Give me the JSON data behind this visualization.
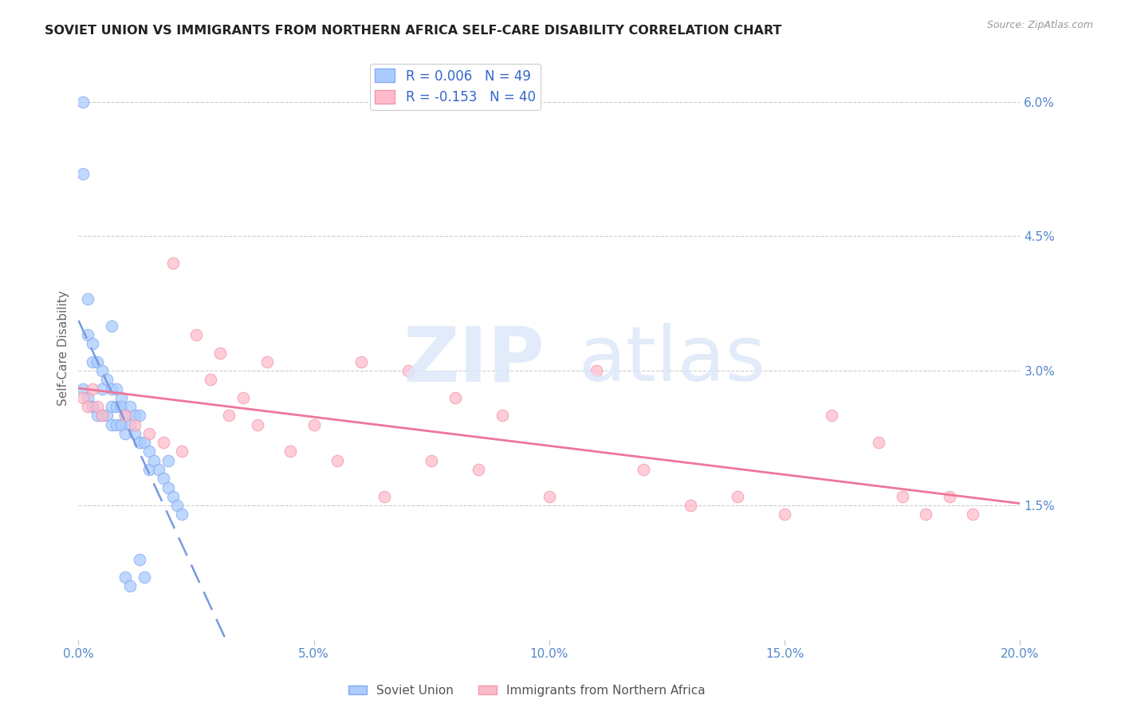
{
  "title": "SOVIET UNION VS IMMIGRANTS FROM NORTHERN AFRICA SELF-CARE DISABILITY CORRELATION CHART",
  "source": "Source: ZipAtlas.com",
  "xlabel_ticks": [
    "0.0%",
    "5.0%",
    "10.0%",
    "15.0%",
    "20.0%"
  ],
  "xlabel_tick_vals": [
    0.0,
    0.05,
    0.1,
    0.15,
    0.2
  ],
  "ylabel": "Self-Care Disability",
  "right_ytick_vals": [
    0.0,
    0.015,
    0.03,
    0.045,
    0.06
  ],
  "right_ytick_labels": [
    "",
    "1.5%",
    "3.0%",
    "4.5%",
    "6.0%"
  ],
  "xmin": 0.0,
  "xmax": 0.2,
  "ymin": 0.0,
  "ymax": 0.065,
  "soviet_color": "#aaccff",
  "soviet_edge_color": "#88aaee",
  "northern_africa_color": "#ffbbcc",
  "northern_africa_edge_color": "#ee99aa",
  "soviet_trend_color": "#7799dd",
  "northern_africa_trend_color": "#ee7799",
  "watermark_zip_color": "#dde8f8",
  "watermark_atlas_color": "#dde8f8",
  "soviet_x": [
    0.001,
    0.001,
    0.001,
    0.002,
    0.002,
    0.002,
    0.003,
    0.003,
    0.003,
    0.004,
    0.004,
    0.005,
    0.005,
    0.005,
    0.006,
    0.006,
    0.007,
    0.007,
    0.007,
    0.007,
    0.008,
    0.008,
    0.008,
    0.009,
    0.009,
    0.009,
    0.01,
    0.01,
    0.011,
    0.011,
    0.012,
    0.012,
    0.013,
    0.013,
    0.014,
    0.015,
    0.015,
    0.016,
    0.017,
    0.018,
    0.019,
    0.019,
    0.02,
    0.021,
    0.022,
    0.013,
    0.014,
    0.01,
    0.011
  ],
  "soviet_y": [
    0.06,
    0.052,
    0.028,
    0.038,
    0.034,
    0.027,
    0.033,
    0.031,
    0.026,
    0.031,
    0.025,
    0.03,
    0.028,
    0.025,
    0.029,
    0.025,
    0.035,
    0.028,
    0.026,
    0.024,
    0.028,
    0.026,
    0.024,
    0.027,
    0.026,
    0.024,
    0.025,
    0.023,
    0.026,
    0.024,
    0.025,
    0.023,
    0.025,
    0.022,
    0.022,
    0.021,
    0.019,
    0.02,
    0.019,
    0.018,
    0.02,
    0.017,
    0.016,
    0.015,
    0.014,
    0.009,
    0.007,
    0.007,
    0.006
  ],
  "northern_africa_x": [
    0.001,
    0.002,
    0.003,
    0.004,
    0.005,
    0.01,
    0.012,
    0.015,
    0.018,
    0.02,
    0.022,
    0.025,
    0.028,
    0.03,
    0.032,
    0.035,
    0.038,
    0.04,
    0.045,
    0.05,
    0.055,
    0.06,
    0.065,
    0.07,
    0.075,
    0.08,
    0.085,
    0.09,
    0.1,
    0.11,
    0.12,
    0.13,
    0.14,
    0.15,
    0.16,
    0.17,
    0.175,
    0.18,
    0.185,
    0.19
  ],
  "northern_africa_y": [
    0.027,
    0.026,
    0.028,
    0.026,
    0.025,
    0.025,
    0.024,
    0.023,
    0.022,
    0.042,
    0.021,
    0.034,
    0.029,
    0.032,
    0.025,
    0.027,
    0.024,
    0.031,
    0.021,
    0.024,
    0.02,
    0.031,
    0.016,
    0.03,
    0.02,
    0.027,
    0.019,
    0.025,
    0.016,
    0.03,
    0.019,
    0.015,
    0.016,
    0.014,
    0.025,
    0.022,
    0.016,
    0.014,
    0.016,
    0.014
  ]
}
